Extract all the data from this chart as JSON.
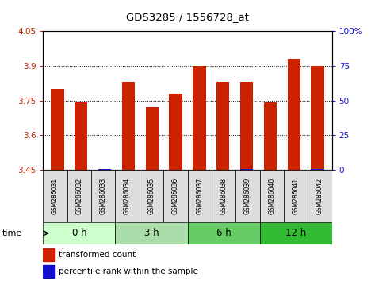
{
  "title": "GDS3285 / 1556728_at",
  "samples": [
    "GSM286031",
    "GSM286032",
    "GSM286033",
    "GSM286034",
    "GSM286035",
    "GSM286036",
    "GSM286037",
    "GSM286038",
    "GSM286039",
    "GSM286040",
    "GSM286041",
    "GSM286042"
  ],
  "transformed_count": [
    3.8,
    3.74,
    3.45,
    3.83,
    3.72,
    3.78,
    3.9,
    3.83,
    3.83,
    3.74,
    3.93,
    3.9
  ],
  "percentile_rank": [
    5,
    5,
    8,
    5,
    3,
    5,
    5,
    5,
    6,
    3,
    5,
    6
  ],
  "ymin": 3.45,
  "ymax": 4.05,
  "yticks": [
    3.45,
    3.6,
    3.75,
    3.9,
    4.05
  ],
  "y2min": 0,
  "y2max": 100,
  "y2ticks": [
    0,
    25,
    50,
    75,
    100
  ],
  "bar_color_red": "#cc2200",
  "bar_color_blue": "#1111cc",
  "bar_width": 0.55,
  "bg_color": "#ffffff",
  "tick_label_color_left": "#cc2200",
  "tick_label_color_right": "#1111cc",
  "group_info": [
    {
      "label": "0 h",
      "start": 0,
      "end": 3,
      "color": "#ccffcc"
    },
    {
      "label": "3 h",
      "start": 3,
      "end": 6,
      "color": "#aaddaa"
    },
    {
      "label": "6 h",
      "start": 6,
      "end": 9,
      "color": "#66cc66"
    },
    {
      "label": "12 h",
      "start": 9,
      "end": 12,
      "color": "#33bb33"
    }
  ],
  "sample_box_color": "#dddddd",
  "grid_yticks": [
    3.6,
    3.75,
    3.9
  ]
}
